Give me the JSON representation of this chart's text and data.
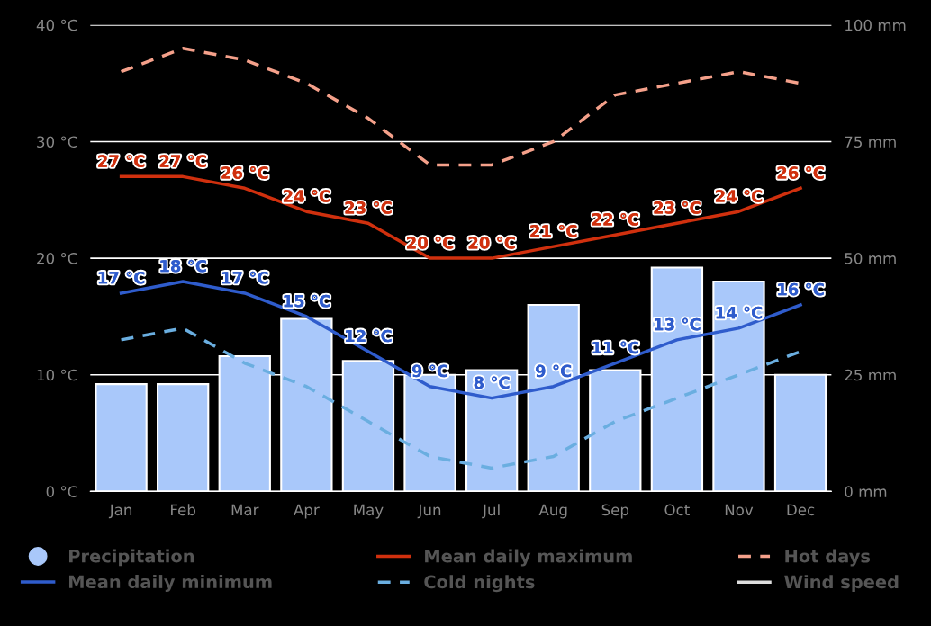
{
  "chart_data": {
    "type": "line",
    "categories": [
      "Jan",
      "Feb",
      "Mar",
      "Apr",
      "May",
      "Jun",
      "Jul",
      "Aug",
      "Sep",
      "Oct",
      "Nov",
      "Dec"
    ],
    "series": [
      {
        "name": "Precipitation",
        "type": "bar",
        "axis": "y2",
        "color": "#a9c8fa",
        "values": [
          23,
          23,
          29,
          37,
          28,
          25,
          26,
          40,
          26,
          48,
          45,
          25
        ]
      },
      {
        "name": "Mean daily maximum",
        "color": "#d0300e",
        "line_style": "solid",
        "values": [
          27,
          27,
          26,
          24,
          23,
          20,
          20,
          21,
          22,
          23,
          24,
          26
        ],
        "value_labels": [
          "27 °C",
          "27 °C",
          "26 °C",
          "24 °C",
          "23 °C",
          "20 °C",
          "20 °C",
          "21 °C",
          "22 °C",
          "23 °C",
          "24 °C",
          "26 °C"
        ]
      },
      {
        "name": "Hot days",
        "color": "#f4a08a",
        "line_style": "dashed",
        "values": [
          36,
          38,
          37,
          35,
          32,
          28,
          28,
          30,
          34,
          35,
          36,
          35
        ]
      },
      {
        "name": "Mean daily minimum",
        "color": "#2f5ccc",
        "line_style": "solid",
        "values": [
          17,
          18,
          17,
          15,
          12,
          9,
          8,
          9,
          11,
          13,
          14,
          16
        ],
        "value_labels": [
          "17 °C",
          "18 °C",
          "17 °C",
          "15 °C",
          "12 °C",
          "9 °C",
          "8 °C",
          "9 °C",
          "11 °C",
          "13 °C",
          "14 °C",
          "16 °C"
        ]
      },
      {
        "name": "Cold nights",
        "color": "#6aaee0",
        "line_style": "dashed",
        "values": [
          13,
          14,
          11,
          9,
          6,
          3,
          2,
          3,
          6,
          8,
          10,
          12
        ]
      },
      {
        "name": "Wind speed",
        "color": "#dddddd",
        "line_style": "solid",
        "values": [
          null,
          null,
          null,
          null,
          null,
          null,
          null,
          null,
          null,
          null,
          null,
          null
        ]
      }
    ],
    "ylim": [
      0,
      40
    ],
    "yticks": [
      {
        "value": 0,
        "label": "0 °C"
      },
      {
        "value": 10,
        "label": "10 °C"
      },
      {
        "value": 20,
        "label": "20 °C"
      },
      {
        "value": 30,
        "label": "30 °C"
      },
      {
        "value": 40,
        "label": "40 °C"
      }
    ],
    "y2lim": [
      0,
      100
    ],
    "y2ticks": [
      {
        "value": 0,
        "label": "0 mm"
      },
      {
        "value": 25,
        "label": "25 mm"
      },
      {
        "value": 50,
        "label": "50 mm"
      },
      {
        "value": 75,
        "label": "75 mm"
      },
      {
        "value": 100,
        "label": "100 mm"
      }
    ],
    "grid": "y",
    "legend": "bottom"
  }
}
